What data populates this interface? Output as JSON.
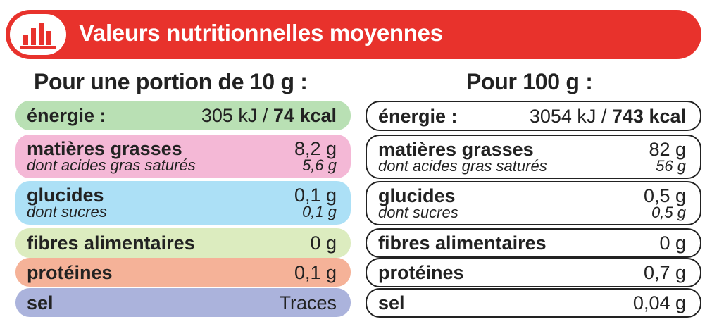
{
  "header": {
    "title": "Valeurs nutritionnelles moyennes",
    "icon": "bar-chart-icon",
    "color": "#e8322c"
  },
  "columns": {
    "left": {
      "title": "Pour une portion de 10 g :",
      "energy": {
        "label": "énergie :",
        "kj": "305 kJ / ",
        "kcal": "74 kcal"
      },
      "fat": {
        "label": "matières grasses",
        "value": "8,2 g",
        "sub_label": "dont acides gras saturés",
        "sub_value": "5,6 g"
      },
      "carbs": {
        "label": "glucides",
        "value": "0,1 g",
        "sub_label": "dont sucres",
        "sub_value": "0,1 g"
      },
      "fiber": {
        "label": "fibres alimentaires",
        "value": "0 g"
      },
      "protein": {
        "label": "protéines",
        "value": "0,1 g"
      },
      "salt": {
        "label": "sel",
        "value": "Traces"
      }
    },
    "right": {
      "title": "Pour 100 g :",
      "energy": {
        "label": "énergie :",
        "kj": "3054 kJ / ",
        "kcal": "743 kcal"
      },
      "fat": {
        "label": "matières grasses",
        "value": "82 g",
        "sub_label": "dont acides gras saturés",
        "sub_value": "56 g"
      },
      "carbs": {
        "label": "glucides",
        "value": "0,5 g",
        "sub_label": "dont sucres",
        "sub_value": "0,5 g"
      },
      "fiber": {
        "label": "fibres alimentaires",
        "value": "0 g"
      },
      "protein": {
        "label": "protéines",
        "value": "0,7 g"
      },
      "salt": {
        "label": "sel",
        "value": "0,04 g"
      }
    }
  },
  "colors": {
    "energy": "#b9e0b4",
    "fat": "#f4b8d6",
    "carbs": "#ace0f6",
    "fiber": "#dcecbf",
    "protein": "#f5b298",
    "salt": "#abb3dc"
  }
}
